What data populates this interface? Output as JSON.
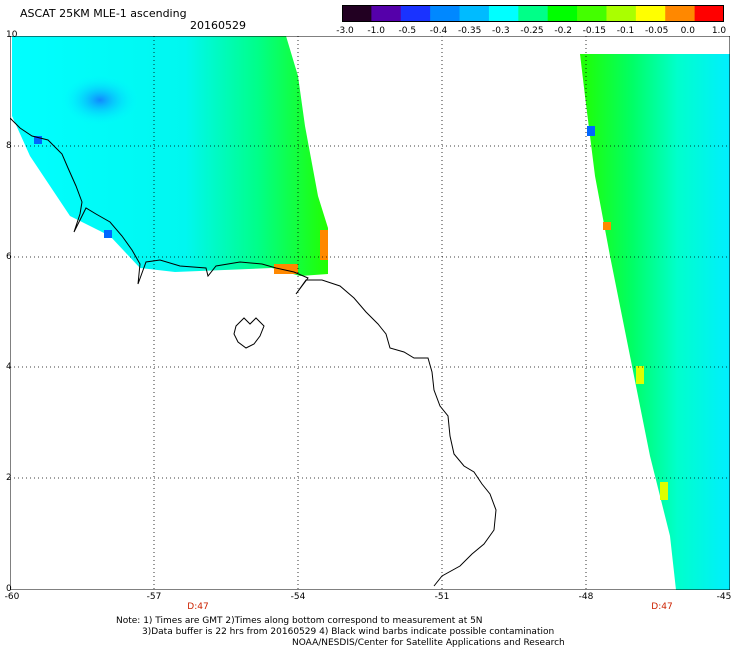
{
  "header": {
    "title": "ASCAT 25KM MLE-1 ascending",
    "date": "20160529"
  },
  "colorbar": {
    "labels": [
      "-3.0",
      "-1.0",
      "-0.5",
      "-0.4",
      "-0.35",
      "-0.3",
      "-0.25",
      "-0.2",
      "-0.15",
      "-0.1",
      "-0.05",
      "0.0",
      "1.0"
    ],
    "colors": [
      "#220022",
      "#5500aa",
      "#1a33ff",
      "#0088ff",
      "#00bbff",
      "#00ffff",
      "#00ff88",
      "#00ff00",
      "#44ff00",
      "#aaff00",
      "#ffff00",
      "#ff8800",
      "#ff0000"
    ]
  },
  "axes": {
    "lon_labels": [
      "-60",
      "-57",
      "-54",
      "-51",
      "-48",
      "-45"
    ],
    "lat_labels": [
      "10",
      "8",
      "6",
      "4",
      "2",
      "0"
    ]
  },
  "swath_labels": [
    "D:47",
    "D:47"
  ],
  "notes": [
    "Note: 1) Times are GMT 2)Times along bottom correspond to measurement at 5N",
    "3)Data buffer is 22 hrs from 20160529 4) Black wind barbs indicate possible contamination",
    "NOAA/NESDIS/Center for Satellite Applications and Research"
  ]
}
